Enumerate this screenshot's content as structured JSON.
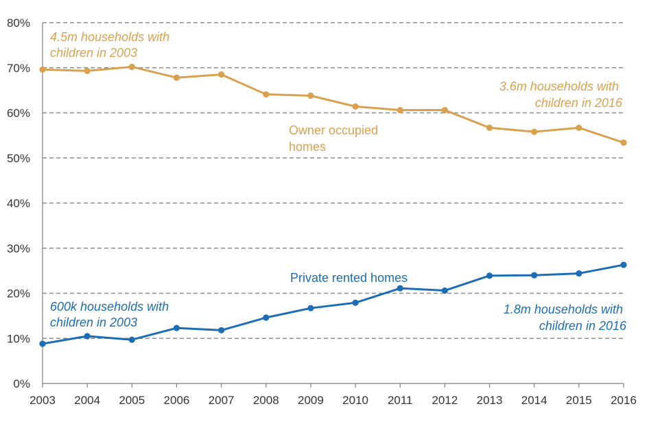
{
  "chart_data": {
    "type": "line",
    "x": [
      "2003",
      "2004",
      "2005",
      "2006",
      "2007",
      "2008",
      "2009",
      "2010",
      "2011",
      "2012",
      "2013",
      "2014",
      "2015",
      "2016"
    ],
    "ylim": [
      0,
      80
    ],
    "y_ticks": [
      "0%",
      "10%",
      "20%",
      "30%",
      "40%",
      "50%",
      "60%",
      "70%",
      "80%"
    ],
    "y_tick_values": [
      0,
      10,
      20,
      30,
      40,
      50,
      60,
      70,
      80
    ],
    "grid": true,
    "series": [
      {
        "name": "Owner occupied homes",
        "color": "#D9A14E",
        "values": [
          69.6,
          69.3,
          70.2,
          67.8,
          68.5,
          64.1,
          63.8,
          61.4,
          60.6,
          60.6,
          56.7,
          55.8,
          56.7,
          53.4
        ]
      },
      {
        "name": "Private rented homes",
        "color": "#1C6DB5",
        "values": [
          8.8,
          10.5,
          9.7,
          12.3,
          11.8,
          14.6,
          16.7,
          17.9,
          21.1,
          20.6,
          23.9,
          24.0,
          24.4,
          26.3
        ]
      }
    ],
    "annotations": {
      "owner_start": [
        "4.5m households with",
        "children in 2003"
      ],
      "owner_end": [
        "3.6m households with",
        "children in 2016"
      ],
      "owner_label": [
        "Owner occupied",
        "homes"
      ],
      "rented_label": [
        "Private rented homes"
      ],
      "rented_start": [
        "600k households with",
        "children in 2003"
      ],
      "rented_end": [
        "1.8m households with",
        "children in 2016"
      ]
    }
  }
}
